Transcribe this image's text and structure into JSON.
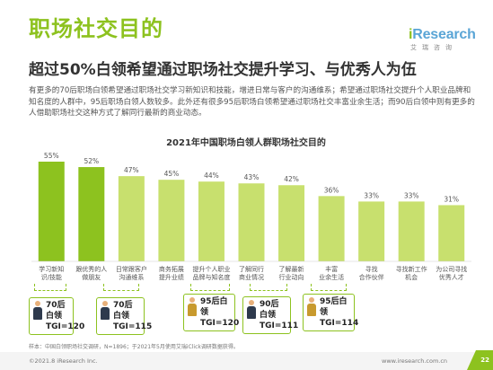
{
  "header": {
    "title": "职场社交目的",
    "subtitle": "超过50%白领希望通过职场社交提升学习、与优秀人为伍",
    "logo_main": "Research",
    "logo_prefix": "i",
    "logo_sub": "艾瑞咨询"
  },
  "body_text": "有更多的70后职场白领希望通过职场社交学习新知识和技能，增进日常与客户的沟通维系；希望通过职场社交提升个人职业品牌和知名度的人群中，95后职场白领人数较多。此外还有很多95后职场白领希望通过职场社交丰富业余生活；而90后白领中则有更多的人借助职场社交这种方式了解同行最新的商业动态。",
  "chart_data": {
    "type": "bar",
    "title": "2021年中国职场白领人群职场社交目的",
    "categories": [
      "学习新知识/技能",
      "跟优秀的人做朋友",
      "日常跟客户沟通维系",
      "商务拓展提升业绩",
      "提升个人职业品牌与知名度",
      "了解同行商业情况",
      "了解最新行业动向",
      "丰富业余生活",
      "寻找合作伙伴",
      "寻找新工作机会",
      "为公司寻找优秀人才"
    ],
    "category_lines": [
      [
        "学习新知",
        "识/技能"
      ],
      [
        "跟优秀的人",
        "做朋友"
      ],
      [
        "日常跟客户",
        "沟通维系"
      ],
      [
        "商务拓展",
        "提升业绩"
      ],
      [
        "提升个人职业",
        "品牌与知名度"
      ],
      [
        "了解同行",
        "商业情况"
      ],
      [
        "了解最新",
        "行业动向"
      ],
      [
        "丰富",
        "业余生活"
      ],
      [
        "寻找",
        "合作伙伴"
      ],
      [
        "寻找新工作",
        "机会"
      ],
      [
        "为公司寻找",
        "优秀人才"
      ]
    ],
    "values": [
      55,
      52,
      47,
      45,
      44,
      43,
      42,
      36,
      33,
      33,
      31
    ],
    "value_labels": [
      "55%",
      "52%",
      "47%",
      "45%",
      "44%",
      "43%",
      "42%",
      "36%",
      "33%",
      "33%",
      "31%"
    ],
    "solid_count": 2,
    "ylim": [
      0,
      60
    ],
    "colors": {
      "solid": "#8DC21F",
      "light": "#C8E06E"
    }
  },
  "tgi_badges": [
    {
      "group": "70后白领",
      "tgi": "TGI=120",
      "icon": "person-icon"
    },
    {
      "group": "70后白领",
      "tgi": "TGI=115",
      "icon": "person-icon"
    },
    {
      "group": "95后白领",
      "tgi": "TGI=120",
      "icon": "person-icon"
    },
    {
      "group": "90后白领",
      "tgi": "TGI=111",
      "icon": "person-icon"
    },
    {
      "group": "95后白领",
      "tgi": "TGI=114",
      "icon": "person-icon"
    }
  ],
  "footer": {
    "note": "样本：中国白领职场社交调研，N=1896；于2021年5月使用艾瑞iClick调研数据获得。",
    "copyright": "©2021.8 iResearch Inc.",
    "site": "www.iresearch.com.cn",
    "page": "22"
  },
  "colors": {
    "accent": "#8DC21F",
    "logo_blue": "#5aa5d6"
  }
}
